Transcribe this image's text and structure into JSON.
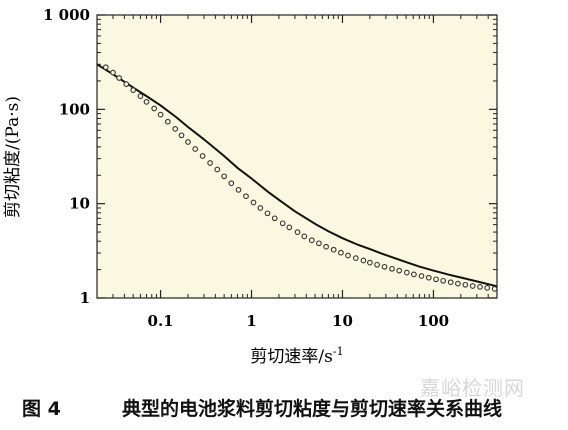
{
  "chart_data": {
    "type": "scatter",
    "x_scale": "log",
    "y_scale": "log",
    "xlim": [
      0.02,
      500
    ],
    "ylim": [
      1,
      1000
    ],
    "xlabel": "剪切速率/s",
    "xlabel_sup": "-1",
    "ylabel": "剪切粘度/(Pa·s)",
    "x_ticks": [
      0.1,
      1,
      10,
      100
    ],
    "x_tick_labels": [
      "0.1",
      "1",
      "10",
      "100"
    ],
    "y_ticks": [
      1,
      10,
      100,
      1000
    ],
    "y_tick_labels": [
      "1",
      "10",
      "100",
      "1 000"
    ],
    "grid": false,
    "background": "#fbf8e2",
    "series": [
      {
        "type": "scatter",
        "x": [
          0.025,
          0.03,
          0.035,
          0.042,
          0.05,
          0.06,
          0.07,
          0.085,
          0.1,
          0.12,
          0.145,
          0.17,
          0.2,
          0.24,
          0.29,
          0.35,
          0.42,
          0.5,
          0.6,
          0.72,
          0.87,
          1.05,
          1.25,
          1.5,
          1.8,
          2.2,
          2.6,
          3.2,
          3.8,
          4.6,
          5.5,
          6.6,
          8,
          9.6,
          11.5,
          14,
          17,
          20,
          24,
          29,
          35,
          42,
          51,
          61,
          74,
          89,
          107,
          128,
          155,
          186,
          224,
          270,
          325,
          390,
          470
        ],
        "y": [
          280,
          245,
          215,
          185,
          160,
          138,
          120,
          102,
          88,
          74,
          62,
          53,
          45,
          38,
          32,
          27,
          23,
          19.5,
          16.5,
          14,
          12,
          10.3,
          9,
          7.9,
          7,
          6.2,
          5.6,
          5,
          4.5,
          4.1,
          3.8,
          3.5,
          3.25,
          3.02,
          2.82,
          2.65,
          2.5,
          2.37,
          2.25,
          2.14,
          2.04,
          1.95,
          1.86,
          1.78,
          1.71,
          1.64,
          1.58,
          1.52,
          1.47,
          1.42,
          1.38,
          1.34,
          1.31,
          1.28,
          1.25
        ]
      },
      {
        "type": "line",
        "x": [
          0.02,
          0.03,
          0.05,
          0.07,
          0.1,
          0.15,
          0.2,
          0.3,
          0.5,
          0.7,
          1,
          1.5,
          2,
          3,
          5,
          7,
          10,
          15,
          20,
          30,
          50,
          70,
          100,
          150,
          200,
          300,
          500
        ],
        "y": [
          300,
          235,
          170,
          138,
          110,
          82,
          65,
          48,
          32,
          24,
          18.5,
          13.5,
          11,
          8.3,
          6.1,
          5.1,
          4.3,
          3.65,
          3.3,
          2.85,
          2.4,
          2.15,
          1.95,
          1.76,
          1.65,
          1.5,
          1.33
        ]
      }
    ]
  },
  "caption": {
    "figure_number": "图 4",
    "title": "典型的电池浆料剪切粘度与剪切速率关系曲线"
  },
  "watermark": "嘉峪检测网"
}
